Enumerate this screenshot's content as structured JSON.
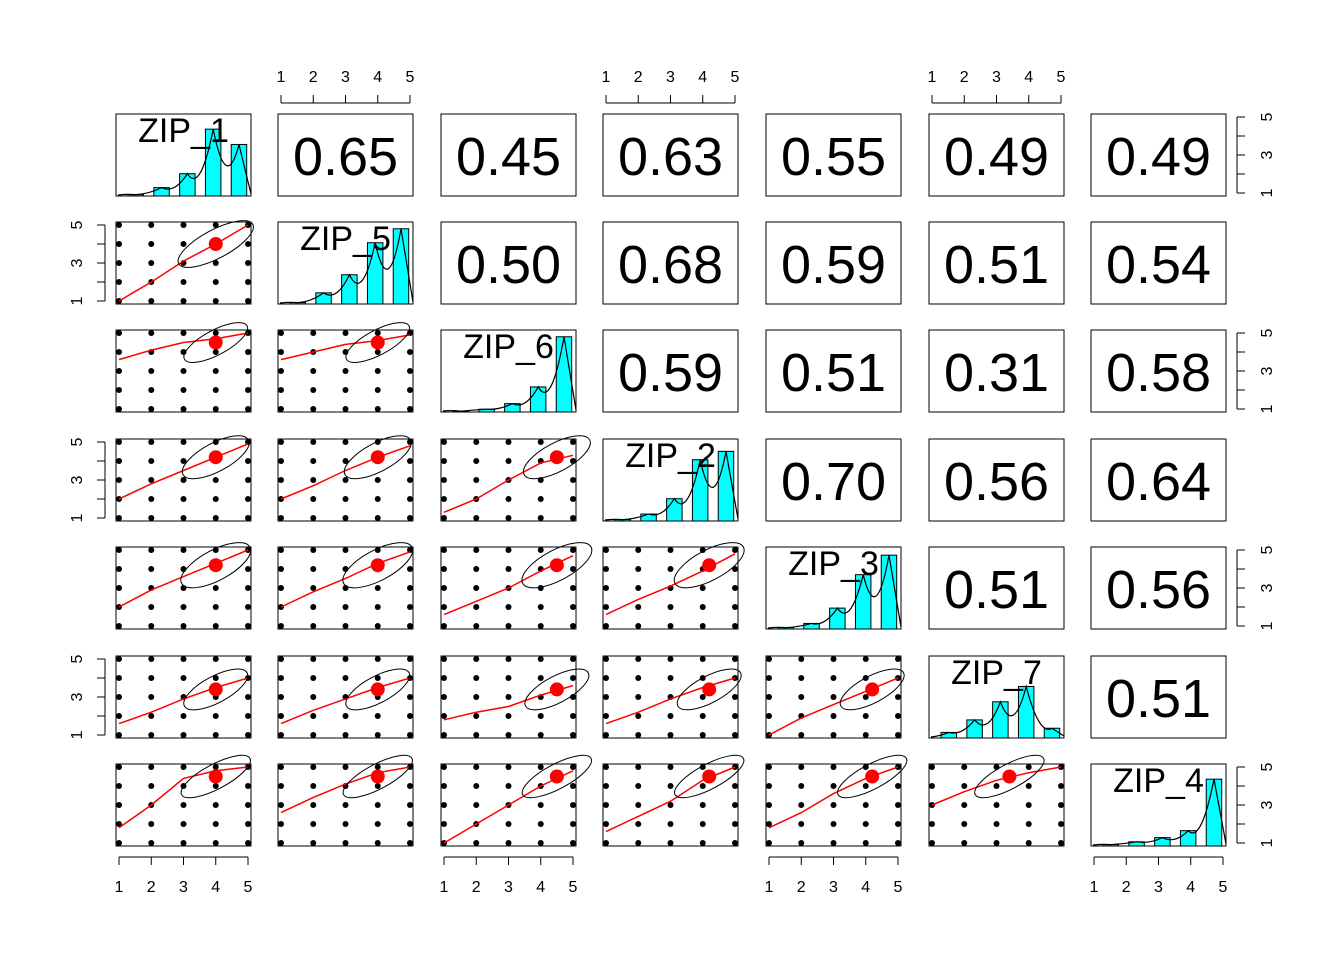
{
  "chart_data": {
    "type": "scatter-matrix",
    "variables": [
      "ZIP_1",
      "ZIP_5",
      "ZIP_6",
      "ZIP_2",
      "ZIP_3",
      "ZIP_7",
      "ZIP_4"
    ],
    "axis_ticks": [
      "1",
      "2",
      "3",
      "4",
      "5"
    ],
    "axis_range": [
      1,
      5
    ],
    "correlations": [
      {
        "row": 0,
        "col": 1,
        "label": "0.65"
      },
      {
        "row": 0,
        "col": 2,
        "label": "0.45"
      },
      {
        "row": 0,
        "col": 3,
        "label": "0.63"
      },
      {
        "row": 0,
        "col": 4,
        "label": "0.55"
      },
      {
        "row": 0,
        "col": 5,
        "label": "0.49"
      },
      {
        "row": 0,
        "col": 6,
        "label": "0.49"
      },
      {
        "row": 1,
        "col": 2,
        "label": "0.50"
      },
      {
        "row": 1,
        "col": 3,
        "label": "0.68"
      },
      {
        "row": 1,
        "col": 4,
        "label": "0.59"
      },
      {
        "row": 1,
        "col": 5,
        "label": "0.51"
      },
      {
        "row": 1,
        "col": 6,
        "label": "0.54"
      },
      {
        "row": 2,
        "col": 3,
        "label": "0.59"
      },
      {
        "row": 2,
        "col": 4,
        "label": "0.51"
      },
      {
        "row": 2,
        "col": 5,
        "label": "0.31"
      },
      {
        "row": 2,
        "col": 6,
        "label": "0.58"
      },
      {
        "row": 3,
        "col": 4,
        "label": "0.70"
      },
      {
        "row": 3,
        "col": 5,
        "label": "0.56"
      },
      {
        "row": 3,
        "col": 6,
        "label": "0.64"
      },
      {
        "row": 4,
        "col": 5,
        "label": "0.51"
      },
      {
        "row": 4,
        "col": 6,
        "label": "0.56"
      },
      {
        "row": 5,
        "col": 6,
        "label": "0.51"
      }
    ],
    "histograms": [
      [
        0.05,
        0.3,
        0.8,
        2.4,
        1.85
      ],
      [
        0.05,
        0.4,
        1.05,
        2.2,
        2.7
      ],
      [
        0.03,
        0.1,
        0.3,
        0.9,
        2.7
      ],
      [
        0.05,
        0.25,
        0.8,
        2.2,
        2.5
      ],
      [
        0.05,
        0.2,
        0.75,
        1.95,
        2.65
      ],
      [
        0.2,
        0.65,
        1.3,
        1.85,
        0.35
      ],
      [
        0.05,
        0.15,
        0.3,
        0.55,
        2.4
      ]
    ],
    "means": [
      4.0,
      4.0,
      4.5,
      4.2,
      4.2,
      3.4,
      4.5
    ],
    "ellipse_sizes": [
      [
        1.15,
        0.8
      ],
      [
        1.3,
        0.75
      ],
      [
        1.1,
        0.65
      ],
      [
        1.15,
        0.75
      ],
      [
        1.2,
        0.8
      ],
      [
        1.1,
        0.7
      ],
      [
        1.2,
        0.65
      ]
    ],
    "loess": [
      {
        "row": 1,
        "col": 0,
        "points": [
          [
            1,
            1.0
          ],
          [
            2,
            2.0
          ],
          [
            3,
            3.1
          ],
          [
            4,
            4.0
          ],
          [
            5,
            5.0
          ]
        ]
      },
      {
        "row": 2,
        "col": 0,
        "points": [
          [
            1,
            3.6
          ],
          [
            2,
            4.1
          ],
          [
            3,
            4.5
          ],
          [
            4,
            4.7
          ],
          [
            5,
            5.0
          ]
        ]
      },
      {
        "row": 2,
        "col": 1,
        "points": [
          [
            1,
            3.6
          ],
          [
            2,
            4.0
          ],
          [
            3,
            4.4
          ],
          [
            4,
            4.6
          ],
          [
            5,
            4.9
          ]
        ]
      },
      {
        "row": 3,
        "col": 0,
        "points": [
          [
            1,
            2.0
          ],
          [
            2,
            2.8
          ],
          [
            3,
            3.5
          ],
          [
            4,
            4.2
          ],
          [
            5,
            4.9
          ]
        ]
      },
      {
        "row": 3,
        "col": 1,
        "points": [
          [
            1,
            2.0
          ],
          [
            2,
            2.7
          ],
          [
            3,
            3.5
          ],
          [
            4,
            4.2
          ],
          [
            5,
            4.8
          ]
        ]
      },
      {
        "row": 3,
        "col": 2,
        "points": [
          [
            1,
            1.3
          ],
          [
            2,
            2.0
          ],
          [
            3,
            3.0
          ],
          [
            4,
            3.9
          ],
          [
            5,
            4.3
          ]
        ]
      },
      {
        "row": 4,
        "col": 0,
        "points": [
          [
            1,
            2.0
          ],
          [
            2,
            2.9
          ],
          [
            3,
            3.6
          ],
          [
            4,
            4.3
          ],
          [
            5,
            5.0
          ]
        ]
      },
      {
        "row": 4,
        "col": 1,
        "points": [
          [
            1,
            2.0
          ],
          [
            2,
            2.8
          ],
          [
            3,
            3.5
          ],
          [
            4,
            4.3
          ],
          [
            5,
            4.9
          ]
        ]
      },
      {
        "row": 4,
        "col": 2,
        "points": [
          [
            1,
            1.6
          ],
          [
            2,
            2.3
          ],
          [
            3,
            3.0
          ],
          [
            4,
            3.9
          ],
          [
            5,
            4.7
          ]
        ]
      },
      {
        "row": 4,
        "col": 3,
        "points": [
          [
            1,
            1.6
          ],
          [
            2,
            2.4
          ],
          [
            3,
            3.1
          ],
          [
            4,
            3.9
          ],
          [
            5,
            4.8
          ]
        ]
      },
      {
        "row": 5,
        "col": 0,
        "points": [
          [
            1,
            1.6
          ],
          [
            2,
            2.2
          ],
          [
            3,
            2.9
          ],
          [
            4,
            3.5
          ],
          [
            5,
            4.0
          ]
        ]
      },
      {
        "row": 5,
        "col": 1,
        "points": [
          [
            1,
            1.6
          ],
          [
            2,
            2.3
          ],
          [
            3,
            2.9
          ],
          [
            4,
            3.5
          ],
          [
            5,
            4.0
          ]
        ]
      },
      {
        "row": 5,
        "col": 2,
        "points": [
          [
            1,
            1.8
          ],
          [
            2,
            2.2
          ],
          [
            3,
            2.5
          ],
          [
            4,
            3.1
          ],
          [
            5,
            3.6
          ]
        ]
      },
      {
        "row": 5,
        "col": 3,
        "points": [
          [
            1,
            1.6
          ],
          [
            2,
            2.2
          ],
          [
            3,
            2.9
          ],
          [
            4,
            3.5
          ],
          [
            5,
            4.0
          ]
        ]
      },
      {
        "row": 5,
        "col": 4,
        "points": [
          [
            1,
            1.0
          ],
          [
            2,
            1.9
          ],
          [
            3,
            2.6
          ],
          [
            4,
            3.3
          ],
          [
            5,
            4.0
          ]
        ]
      },
      {
        "row": 6,
        "col": 0,
        "points": [
          [
            1,
            1.8
          ],
          [
            2,
            3.0
          ],
          [
            3,
            4.4
          ],
          [
            4,
            4.8
          ],
          [
            5,
            5.0
          ]
        ]
      },
      {
        "row": 6,
        "col": 1,
        "points": [
          [
            1,
            2.6
          ],
          [
            2,
            3.4
          ],
          [
            3,
            4.1
          ],
          [
            4,
            4.7
          ],
          [
            5,
            5.0
          ]
        ]
      },
      {
        "row": 6,
        "col": 2,
        "points": [
          [
            1,
            1.0
          ],
          [
            2,
            2.0
          ],
          [
            3,
            3.0
          ],
          [
            4,
            4.0
          ],
          [
            5,
            4.8
          ]
        ]
      },
      {
        "row": 6,
        "col": 3,
        "points": [
          [
            1,
            1.6
          ],
          [
            2,
            2.4
          ],
          [
            3,
            3.2
          ],
          [
            4,
            4.3
          ],
          [
            5,
            5.0
          ]
        ]
      },
      {
        "row": 6,
        "col": 4,
        "points": [
          [
            1,
            1.8
          ],
          [
            2,
            2.6
          ],
          [
            3,
            3.6
          ],
          [
            4,
            4.4
          ],
          [
            5,
            5.0
          ]
        ]
      },
      {
        "row": 6,
        "col": 5,
        "points": [
          [
            1,
            3.0
          ],
          [
            2,
            3.7
          ],
          [
            3,
            4.3
          ],
          [
            4,
            4.7
          ],
          [
            5,
            5.0
          ]
        ]
      }
    ]
  }
}
